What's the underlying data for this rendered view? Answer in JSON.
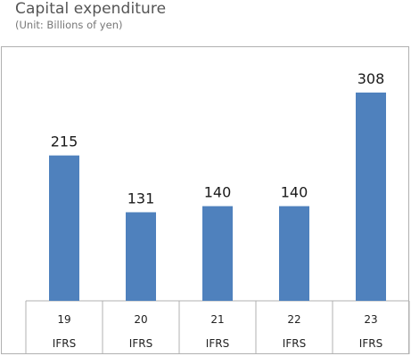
{
  "header": {
    "title": "Capital expenditure",
    "unit": "(Unit: Billions of yen)"
  },
  "colors": {
    "bar": "#4f81bd",
    "border": "#b0b0b0"
  },
  "chart_data": {
    "type": "bar",
    "title": "Capital expenditure",
    "subtitle": "(Unit: Billions of yen)",
    "categories": [
      "19",
      "20",
      "21",
      "22",
      "23"
    ],
    "category_sublabels": [
      "IFRS",
      "IFRS",
      "IFRS",
      "IFRS",
      "IFRS"
    ],
    "values": [
      215,
      131,
      140,
      140,
      308
    ],
    "data_labels": [
      "215",
      "131",
      "140",
      "140",
      "308"
    ],
    "xlabel": "",
    "ylabel": "",
    "ylim": [
      0,
      308
    ],
    "grid": false,
    "legend": "none"
  }
}
